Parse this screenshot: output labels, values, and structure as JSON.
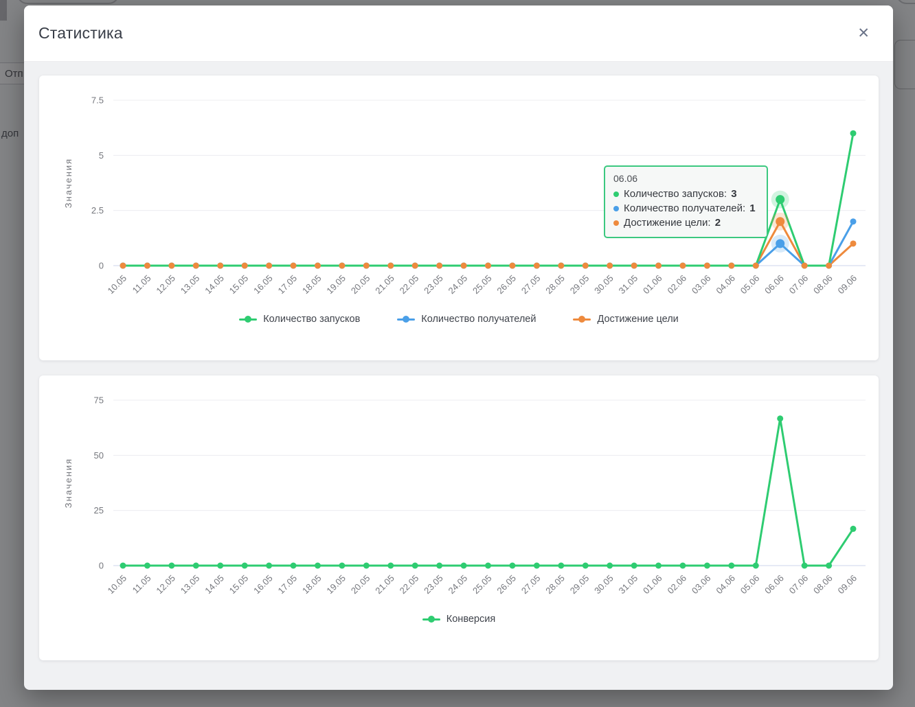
{
  "backdrop": {
    "truncated_button_label": "Отп",
    "truncated_text_fragment": "доп"
  },
  "modal": {
    "title": "Статистика",
    "close_icon": "✕"
  },
  "colors": {
    "green": "#2ecc71",
    "blue": "#4a9fe8",
    "orange": "#ee8a3d",
    "grid": "#ececf0",
    "zero_line": "#ccd6eb",
    "tick_text": "#75777d"
  },
  "tooltip": {
    "title": "06.06",
    "rows": [
      {
        "color": "#2ecc71",
        "label": "Количество запусков",
        "value": "3"
      },
      {
        "color": "#4a9fe8",
        "label": "Количество получателей",
        "value": "1"
      },
      {
        "color": "#ee8a3d",
        "label": "Достижение цели",
        "value": "2"
      }
    ]
  },
  "chart_data": [
    {
      "type": "line",
      "title": "",
      "xlabel": "",
      "ylabel": "Значения",
      "ymax": 7.5,
      "ylim": [
        0,
        7.5
      ],
      "grid": true,
      "legend_position": "bottom",
      "yticks": [
        {
          "label": "0",
          "value": 0
        },
        {
          "label": "2.5",
          "value": 2.5
        },
        {
          "label": "5",
          "value": 5
        },
        {
          "label": "7.5",
          "value": 7.5
        }
      ],
      "categories": [
        "10.05",
        "11.05",
        "12.05",
        "13.05",
        "14.05",
        "15.05",
        "16.05",
        "17.05",
        "18.05",
        "19.05",
        "20.05",
        "21.05",
        "22.05",
        "23.05",
        "24.05",
        "25.05",
        "26.05",
        "27.05",
        "28.05",
        "29.05",
        "30.05",
        "31.05",
        "01.06",
        "02.06",
        "03.06",
        "04.06",
        "05.06",
        "06.06",
        "07.06",
        "08.06",
        "09.06"
      ],
      "highlight_category": "06.06",
      "highlight_index": 27,
      "series": [
        {
          "name": "Количество запусков",
          "color": "#2ecc71",
          "values": [
            0,
            0,
            0,
            0,
            0,
            0,
            0,
            0,
            0,
            0,
            0,
            0,
            0,
            0,
            0,
            0,
            0,
            0,
            0,
            0,
            0,
            0,
            0,
            0,
            0,
            0,
            0,
            3,
            0,
            0,
            6
          ]
        },
        {
          "name": "Количество получателей",
          "color": "#4a9fe8",
          "values": [
            0,
            0,
            0,
            0,
            0,
            0,
            0,
            0,
            0,
            0,
            0,
            0,
            0,
            0,
            0,
            0,
            0,
            0,
            0,
            0,
            0,
            0,
            0,
            0,
            0,
            0,
            0,
            1,
            0,
            0,
            2
          ]
        },
        {
          "name": "Достижение цели",
          "color": "#ee8a3d",
          "values": [
            0,
            0,
            0,
            0,
            0,
            0,
            0,
            0,
            0,
            0,
            0,
            0,
            0,
            0,
            0,
            0,
            0,
            0,
            0,
            0,
            0,
            0,
            0,
            0,
            0,
            0,
            0,
            2,
            0,
            0,
            1
          ]
        }
      ]
    },
    {
      "type": "line",
      "title": "",
      "xlabel": "",
      "ylabel": "Значения",
      "ymax": 75,
      "ylim": [
        0,
        75
      ],
      "grid": true,
      "legend_position": "bottom",
      "yticks": [
        {
          "label": "0",
          "value": 0
        },
        {
          "label": "25",
          "value": 25
        },
        {
          "label": "50",
          "value": 50
        },
        {
          "label": "75",
          "value": 75
        }
      ],
      "categories": [
        "10.05",
        "11.05",
        "12.05",
        "13.05",
        "14.05",
        "15.05",
        "16.05",
        "17.05",
        "18.05",
        "19.05",
        "20.05",
        "21.05",
        "22.05",
        "23.05",
        "24.05",
        "25.05",
        "26.05",
        "27.05",
        "28.05",
        "29.05",
        "30.05",
        "31.05",
        "01.06",
        "02.06",
        "03.06",
        "04.06",
        "05.06",
        "06.06",
        "07.06",
        "08.06",
        "09.06"
      ],
      "series": [
        {
          "name": "Конверсия",
          "color": "#2ecc71",
          "values": [
            0,
            0,
            0,
            0,
            0,
            0,
            0,
            0,
            0,
            0,
            0,
            0,
            0,
            0,
            0,
            0,
            0,
            0,
            0,
            0,
            0,
            0,
            0,
            0,
            0,
            0,
            0,
            66.67,
            0,
            0,
            16.67
          ]
        }
      ]
    }
  ]
}
